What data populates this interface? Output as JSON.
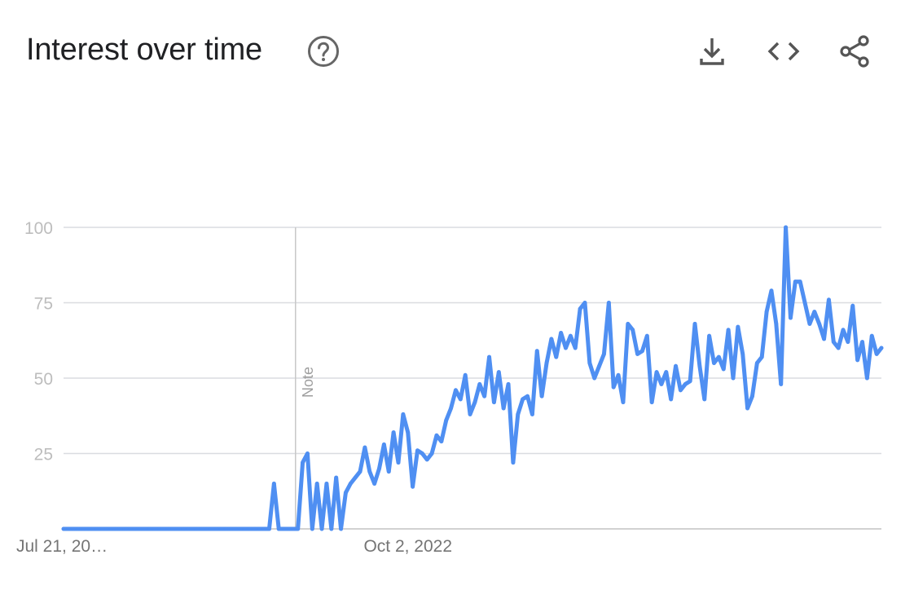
{
  "header": {
    "title": "Interest over time",
    "help_icon": "help-circle-icon",
    "download_icon": "download-icon",
    "embed_icon": "code-icon",
    "share_icon": "share-icon"
  },
  "colors": {
    "series": "#4f8ff2",
    "grid": "#dadce0",
    "axis_text": "#bdbdbd",
    "date_text": "#757575",
    "title": "#202124",
    "icon": "#555555"
  },
  "chart_data": {
    "type": "line",
    "title": "Interest over time",
    "xlabel": "",
    "ylabel": "",
    "ylim": [
      0,
      100
    ],
    "yticks": [
      25,
      50,
      75,
      100
    ],
    "grid": true,
    "xtick_labels": [
      {
        "label": "Jul 21, 20…",
        "x": 0
      },
      {
        "label": "Oct 2, 2022",
        "x": 72
      }
    ],
    "annotations": [
      {
        "label": "Note",
        "x": 48.5
      }
    ],
    "series": [
      {
        "values": [
          0,
          0,
          0,
          0,
          0,
          0,
          0,
          0,
          0,
          0,
          0,
          0,
          0,
          0,
          0,
          0,
          0,
          0,
          0,
          0,
          0,
          0,
          0,
          0,
          0,
          0,
          0,
          0,
          0,
          0,
          0,
          0,
          0,
          0,
          0,
          0,
          0,
          0,
          0,
          0,
          0,
          0,
          0,
          0,
          15,
          0,
          0,
          0,
          0,
          0,
          22,
          25,
          0,
          15,
          0,
          15,
          0,
          17,
          0,
          12,
          15,
          17,
          19,
          27,
          19,
          15,
          20,
          28,
          19,
          32,
          22,
          38,
          32,
          14,
          26,
          25,
          23,
          25,
          31,
          29,
          36,
          40,
          46,
          43,
          51,
          38,
          42,
          48,
          44,
          57,
          42,
          52,
          40,
          48,
          22,
          38,
          43,
          44,
          38,
          59,
          44,
          55,
          63,
          57,
          65,
          60,
          64,
          60,
          73,
          75,
          55,
          50,
          54,
          58,
          75,
          47,
          51,
          42,
          68,
          66,
          58,
          59,
          64,
          42,
          52,
          48,
          52,
          43,
          54,
          46,
          48,
          49,
          68,
          54,
          43,
          64,
          55,
          57,
          53,
          66,
          50,
          67,
          58,
          40,
          44,
          55,
          57,
          72,
          79,
          68,
          48,
          100,
          70,
          82,
          82,
          75,
          68,
          72,
          68,
          63,
          76,
          62,
          60,
          66,
          62,
          74,
          56,
          62,
          50,
          64,
          58,
          60
        ]
      }
    ]
  }
}
